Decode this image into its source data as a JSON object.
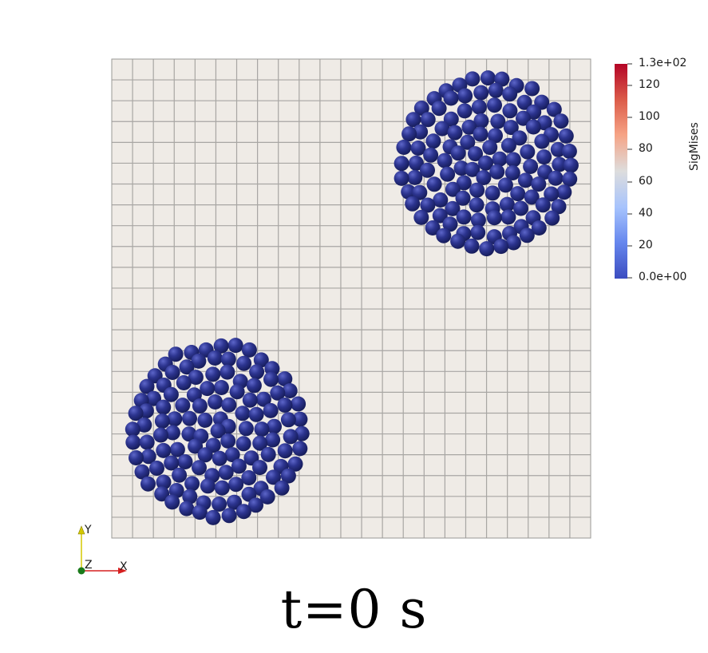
{
  "colorbar": {
    "title": "SigMises",
    "max_label": "1.3e+02",
    "min_label": "0.0e+00",
    "tick_labels": [
      "120",
      "100",
      "80",
      "60",
      "40",
      "20"
    ],
    "colormap_stops": [
      "#b40426",
      "#dc5d4a",
      "#f6a385",
      "#dddddd",
      "#a6c3fd",
      "#6788ee",
      "#3b4cc0"
    ]
  },
  "colors": {
    "mesh_fill": "#efebe6",
    "mesh_line": "#a8a6a3",
    "sphere_color": "#2a3290",
    "axis_x": "#d62020",
    "axis_y": "#d4c800",
    "axis_z": "#1a7a1a"
  },
  "axes": {
    "x": "X",
    "y": "Y",
    "z": "Z"
  },
  "time_label": "t=0 s"
}
